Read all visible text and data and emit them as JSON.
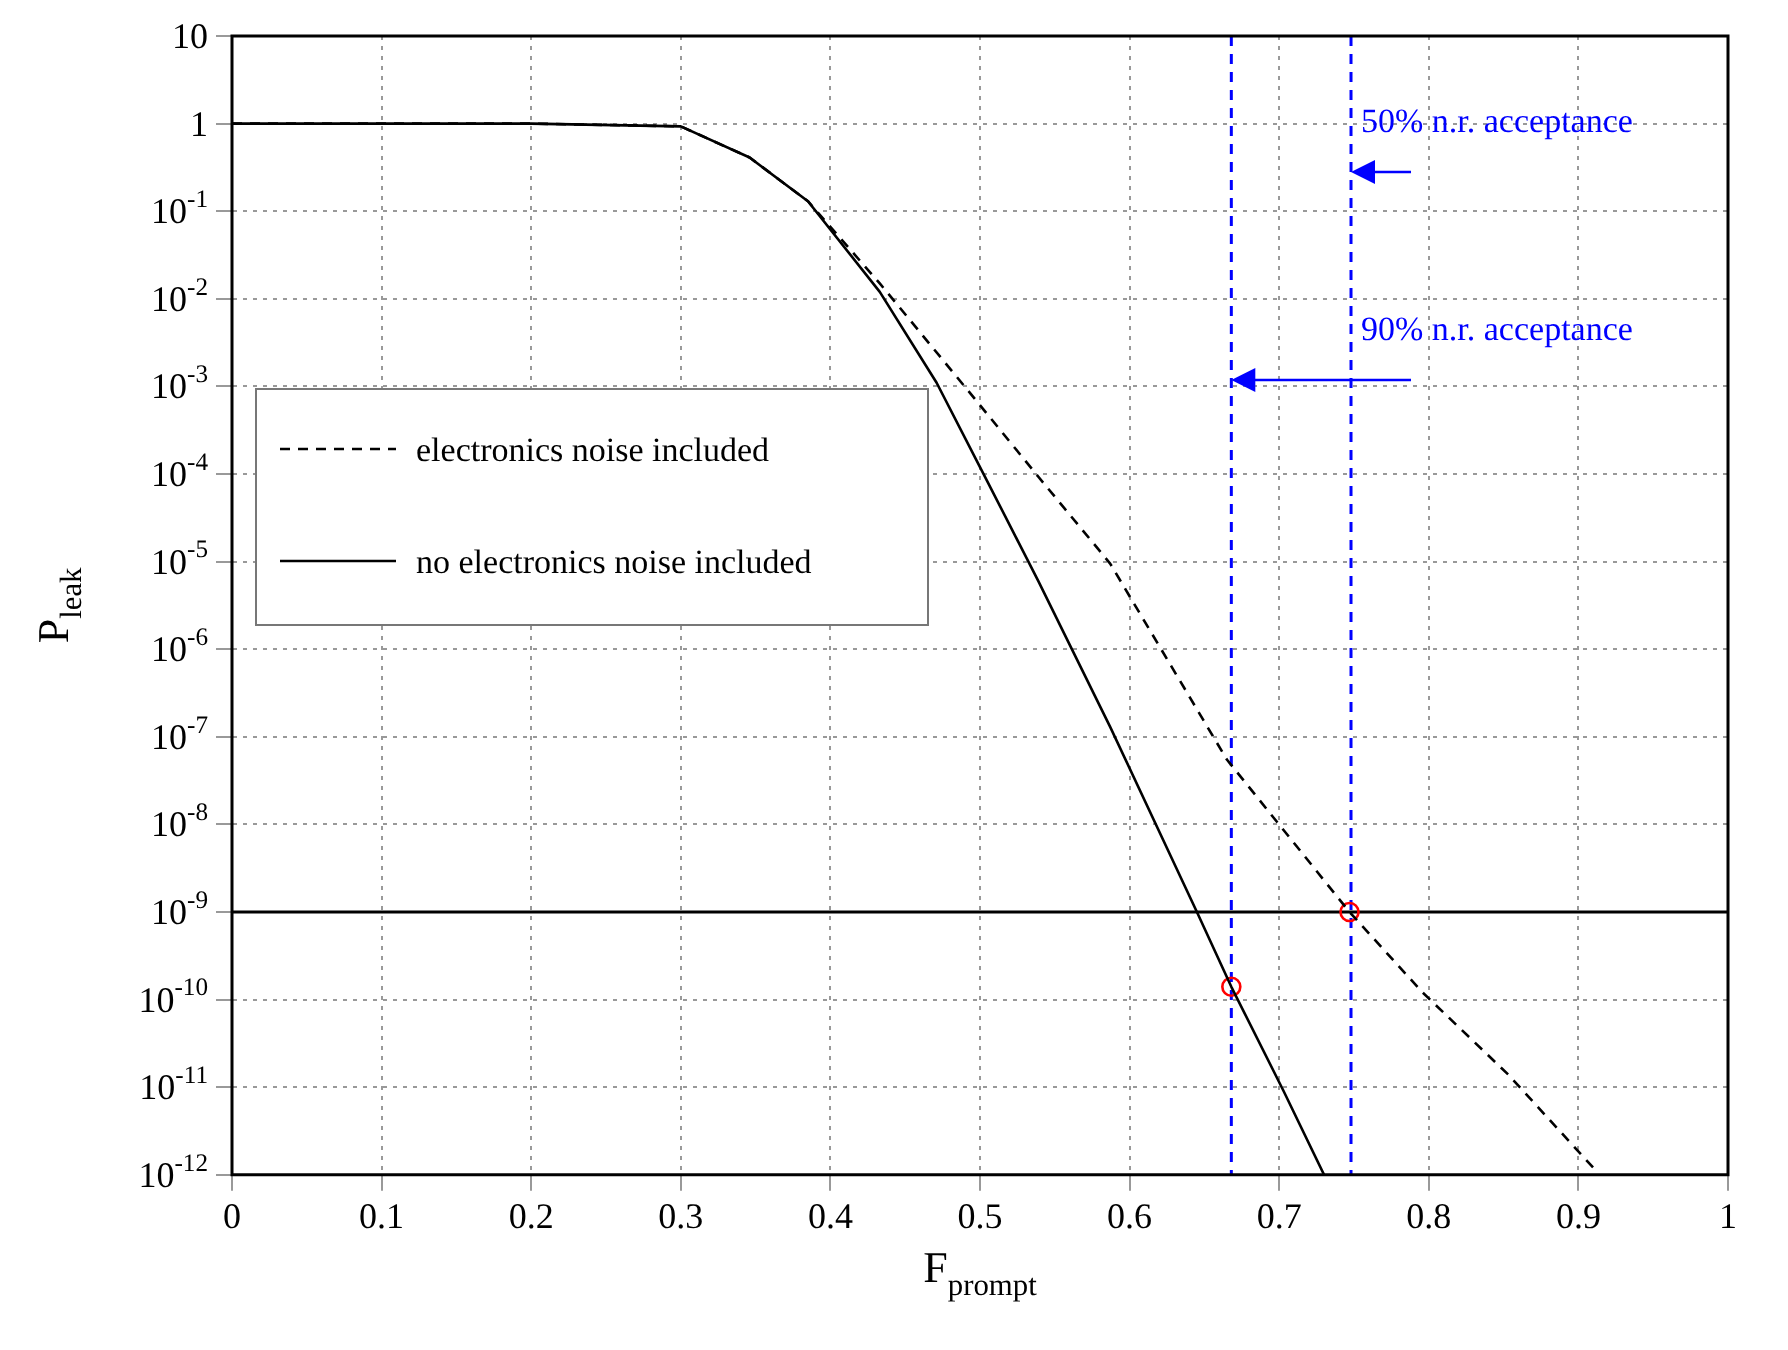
{
  "chart_data": {
    "type": "line",
    "xlabel": "F$_{prompt}$",
    "ylabel": "P$_{leak}$",
    "series": [
      {
        "name": "electronics noise included",
        "type": "line",
        "line_style": "dashed",
        "marker": "none",
        "color": "#000000",
        "x": [
          0,
          0.2,
          0.3,
          0.346,
          0.385,
          0.433,
          0.496,
          0.539,
          0.587,
          0.665,
          0.747,
          0.796,
          0.853,
          0.911
        ],
        "values": [
          1,
          1,
          0.93,
          0.41,
          0.13,
          0.015,
          0.00074,
          9.3e-05,
          9.5e-06,
          5.5e-08,
          1e-09,
          1.2e-10,
          1.4e-11,
          1.15e-12
        ]
      },
      {
        "name": "no electronics noise included",
        "type": "line",
        "line_style": "solid",
        "marker": "none",
        "color": "#000000",
        "x": [
          0,
          0.2,
          0.3,
          0.346,
          0.385,
          0.433,
          0.471,
          0.5,
          0.539,
          0.587,
          0.645,
          0.668,
          0.703,
          0.73
        ],
        "values": [
          1,
          1,
          0.93,
          0.41,
          0.13,
          0.012,
          0.0011,
          0.00012,
          6e-06,
          1.3e-07,
          1e-09,
          1.4e-10,
          9e-12,
          1e-12
        ]
      },
      {
        "type": "scatter",
        "marker": "circle",
        "color": "#ff0000",
        "x": [
          0.668,
          0.747
        ],
        "values": [
          1.4e-10,
          1e-09
        ]
      }
    ],
    "xlim": [
      0,
      1
    ],
    "xticks": [
      0,
      0.1,
      0.2,
      0.3,
      0.4,
      0.5,
      0.6,
      0.7,
      0.8,
      0.9,
      1
    ],
    "ylim": [
      1e-12,
      10
    ],
    "yticks": [
      {
        "value": 1e-12,
        "label": "10$^{-12}$"
      },
      {
        "value": 1e-11,
        "label": "10$^{-11}$"
      },
      {
        "value": 1e-10,
        "label": "10$^{-10}$"
      },
      {
        "value": 1e-09,
        "label": "10$^{-9}$"
      },
      {
        "value": 1e-08,
        "label": "10$^{-8}$"
      },
      {
        "value": 1e-07,
        "label": "10$^{-7}$"
      },
      {
        "value": 1e-06,
        "label": "10$^{-6}$"
      },
      {
        "value": 1e-05,
        "label": "10$^{-5}$"
      },
      {
        "value": 0.0001,
        "label": "10$^{-4}$"
      },
      {
        "value": 0.001,
        "label": "10$^{-3}$"
      },
      {
        "value": 0.01,
        "label": "10$^{-2}$"
      },
      {
        "value": 0.1,
        "label": "10$^{-1}$"
      },
      1,
      10
    ],
    "log": "y",
    "grid": true,
    "legend": "left",
    "ref_lines": [
      {
        "axis": "x",
        "value": 0.748,
        "color": "#0000ff",
        "line_style": "dashed",
        "label": "50% n.r. acceptance"
      },
      {
        "axis": "x",
        "value": 0.668,
        "color": "#0000ff",
        "line_style": "dashed",
        "label": "90% n.r. acceptance"
      },
      {
        "axis": "y",
        "value": 1e-09,
        "color": "#000000",
        "line_style": "solid"
      }
    ]
  }
}
